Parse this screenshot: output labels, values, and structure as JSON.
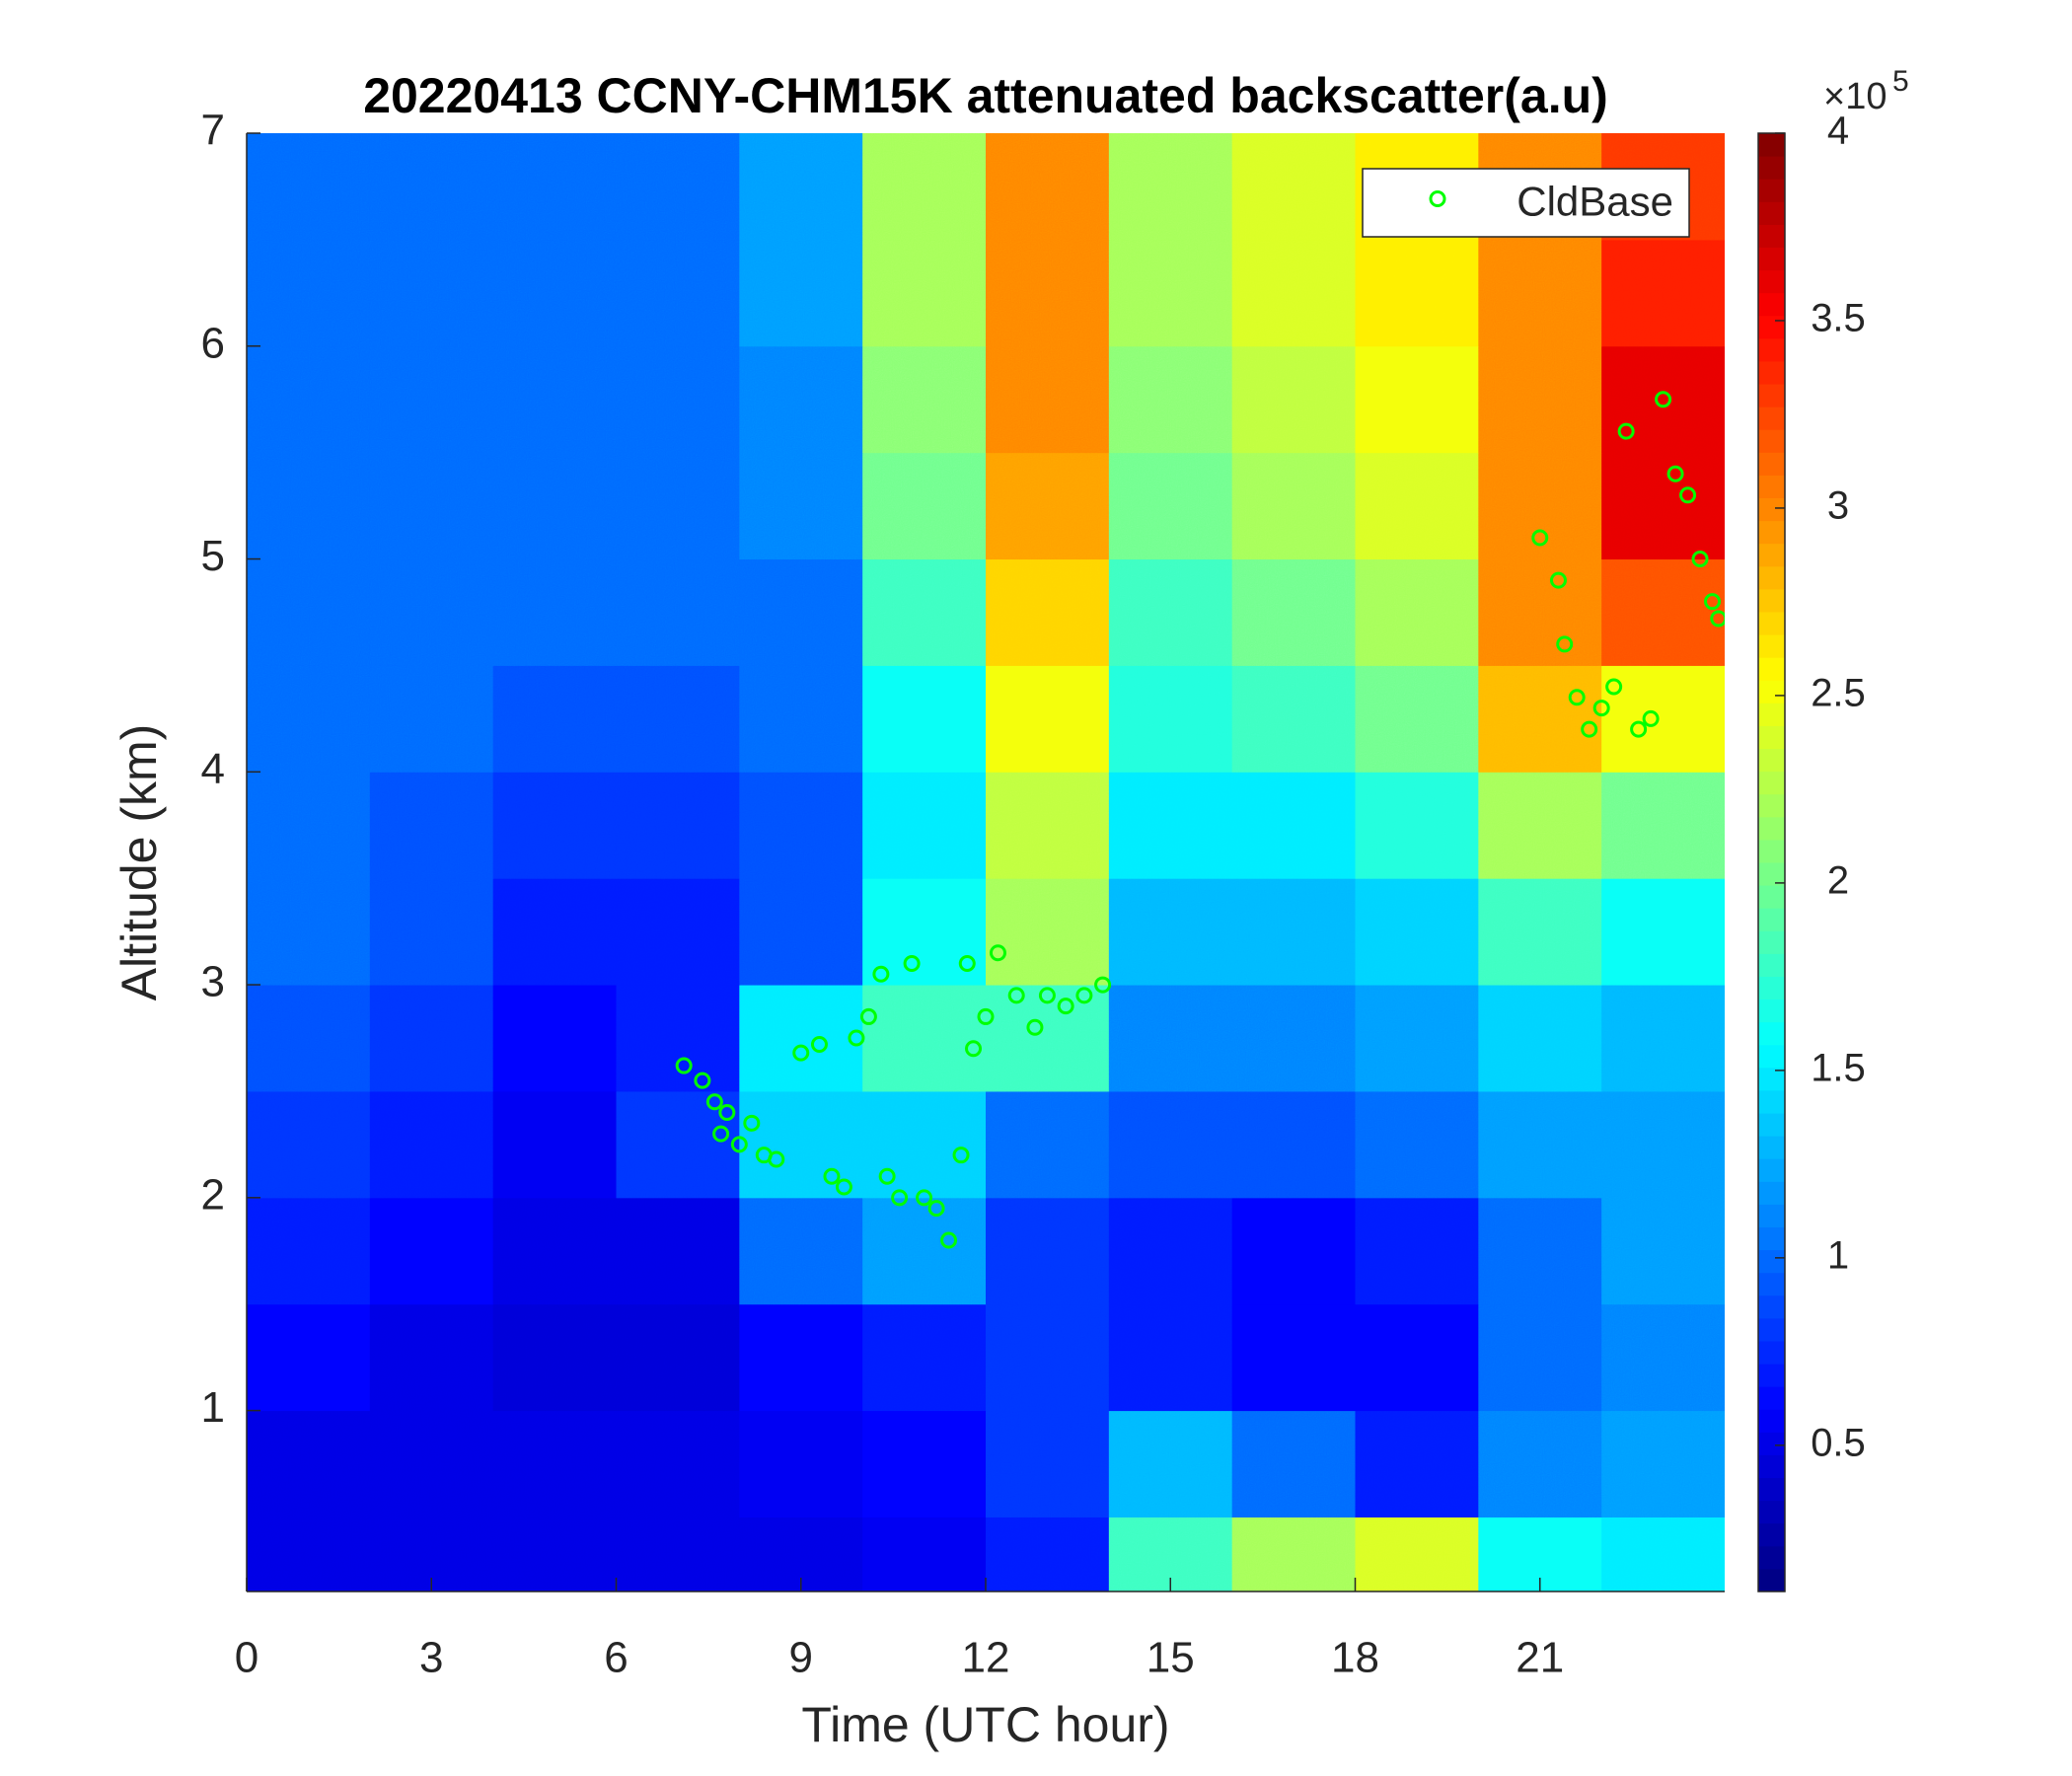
{
  "chart_data": {
    "type": "heatmap",
    "title": "20220413 CCNY-CHM15K attenuated backscatter(a.u)",
    "x_label": "Time (UTC hour)",
    "y_label": "Altitude (km)",
    "xlim": [
      0,
      24
    ],
    "ylim": [
      0.15,
      7
    ],
    "xticks": [
      0,
      3,
      6,
      9,
      12,
      15,
      18,
      21
    ],
    "yticks": [
      1,
      2,
      3,
      4,
      5,
      6,
      7
    ],
    "colormap": "jet",
    "clim": [
      0.11,
      4
    ],
    "cticks": [
      0.5,
      1,
      1.5,
      2,
      2.5,
      3,
      3.5,
      4
    ],
    "colorbar_multiplier": "×10",
    "colorbar_multiplier_exponent": "5",
    "x_edges": [
      0,
      2,
      4,
      6,
      8,
      10,
      12,
      14,
      16,
      18,
      20,
      22,
      24
    ],
    "y_edges": [
      0.15,
      0.5,
      1,
      1.5,
      2,
      2.5,
      3,
      3.5,
      4,
      4.5,
      5,
      5.5,
      6,
      6.5,
      7
    ],
    "z": [
      [
        0.5,
        0.5,
        0.5,
        0.5,
        0.5,
        0.55,
        0.7,
        1.8,
        2.2,
        2.4,
        1.6,
        1.5
      ],
      [
        0.5,
        0.5,
        0.5,
        0.5,
        0.55,
        0.6,
        0.8,
        1.3,
        1.0,
        0.7,
        1.1,
        1.2
      ],
      [
        0.6,
        0.5,
        0.45,
        0.45,
        0.6,
        0.7,
        0.8,
        0.7,
        0.6,
        0.6,
        1.0,
        1.1
      ],
      [
        0.7,
        0.6,
        0.5,
        0.5,
        1.0,
        1.2,
        0.8,
        0.7,
        0.6,
        0.7,
        1.0,
        1.2
      ],
      [
        0.8,
        0.7,
        0.55,
        0.8,
        1.4,
        1.4,
        1.0,
        0.9,
        0.9,
        1.0,
        1.2,
        1.2
      ],
      [
        0.9,
        0.8,
        0.6,
        0.7,
        1.5,
        1.8,
        1.8,
        1.1,
        1.1,
        1.2,
        1.4,
        1.3
      ],
      [
        1.0,
        0.9,
        0.7,
        0.7,
        0.9,
        1.6,
        2.2,
        1.3,
        1.3,
        1.4,
        1.8,
        1.6
      ],
      [
        1.0,
        0.9,
        0.8,
        0.8,
        0.9,
        1.5,
        2.3,
        1.5,
        1.5,
        1.7,
        2.2,
        2.0
      ],
      [
        1.0,
        1.0,
        0.9,
        0.9,
        1.0,
        1.6,
        2.5,
        1.7,
        1.8,
        2.0,
        2.8,
        2.5
      ],
      [
        1.0,
        1.0,
        1.0,
        1.0,
        1.0,
        1.8,
        2.7,
        1.8,
        2.0,
        2.2,
        3.0,
        3.2
      ],
      [
        1.0,
        1.0,
        1.0,
        1.0,
        1.1,
        2.0,
        2.9,
        2.0,
        2.2,
        2.4,
        3.0,
        3.6
      ],
      [
        1.0,
        1.0,
        1.0,
        1.0,
        1.1,
        2.1,
        3.0,
        2.1,
        2.3,
        2.5,
        3.0,
        3.6
      ],
      [
        1.0,
        1.0,
        1.0,
        1.0,
        1.2,
        2.2,
        3.0,
        2.2,
        2.4,
        2.6,
        3.0,
        3.4
      ],
      [
        1.0,
        1.0,
        1.0,
        1.0,
        1.2,
        2.2,
        3.0,
        2.2,
        2.4,
        2.6,
        3.0,
        3.3
      ]
    ],
    "legend": "upper right",
    "series": [
      {
        "name": "CldBase",
        "type": "scatter",
        "color": "#00ff00",
        "x": [
          7.1,
          7.4,
          7.6,
          7.7,
          7.8,
          8.0,
          8.2,
          8.4,
          8.6,
          9.0,
          9.3,
          9.5,
          9.7,
          9.9,
          10.1,
          10.3,
          10.4,
          10.6,
          10.8,
          11.0,
          11.2,
          11.4,
          11.6,
          11.7,
          11.8,
          12.0,
          12.2,
          12.5,
          12.8,
          13.0,
          13.3,
          13.6,
          13.9,
          21.0,
          21.3,
          21.4,
          21.6,
          21.8,
          22.0,
          22.2,
          22.4,
          22.6,
          22.8,
          23.0,
          23.2,
          23.4,
          23.6,
          23.8,
          23.9
        ],
        "values": [
          2.62,
          2.55,
          2.45,
          2.3,
          2.4,
          2.25,
          2.35,
          2.2,
          2.18,
          2.68,
          2.72,
          2.1,
          2.05,
          2.75,
          2.85,
          3.05,
          2.1,
          2.0,
          3.1,
          2.0,
          1.95,
          1.8,
          2.2,
          3.1,
          2.7,
          2.85,
          3.15,
          2.95,
          2.8,
          2.95,
          2.9,
          2.95,
          3.0,
          5.1,
          4.9,
          4.6,
          4.35,
          4.2,
          4.3,
          4.4,
          5.6,
          4.2,
          4.25,
          5.75,
          5.4,
          5.3,
          5.0,
          4.8,
          4.72
        ]
      }
    ]
  }
}
